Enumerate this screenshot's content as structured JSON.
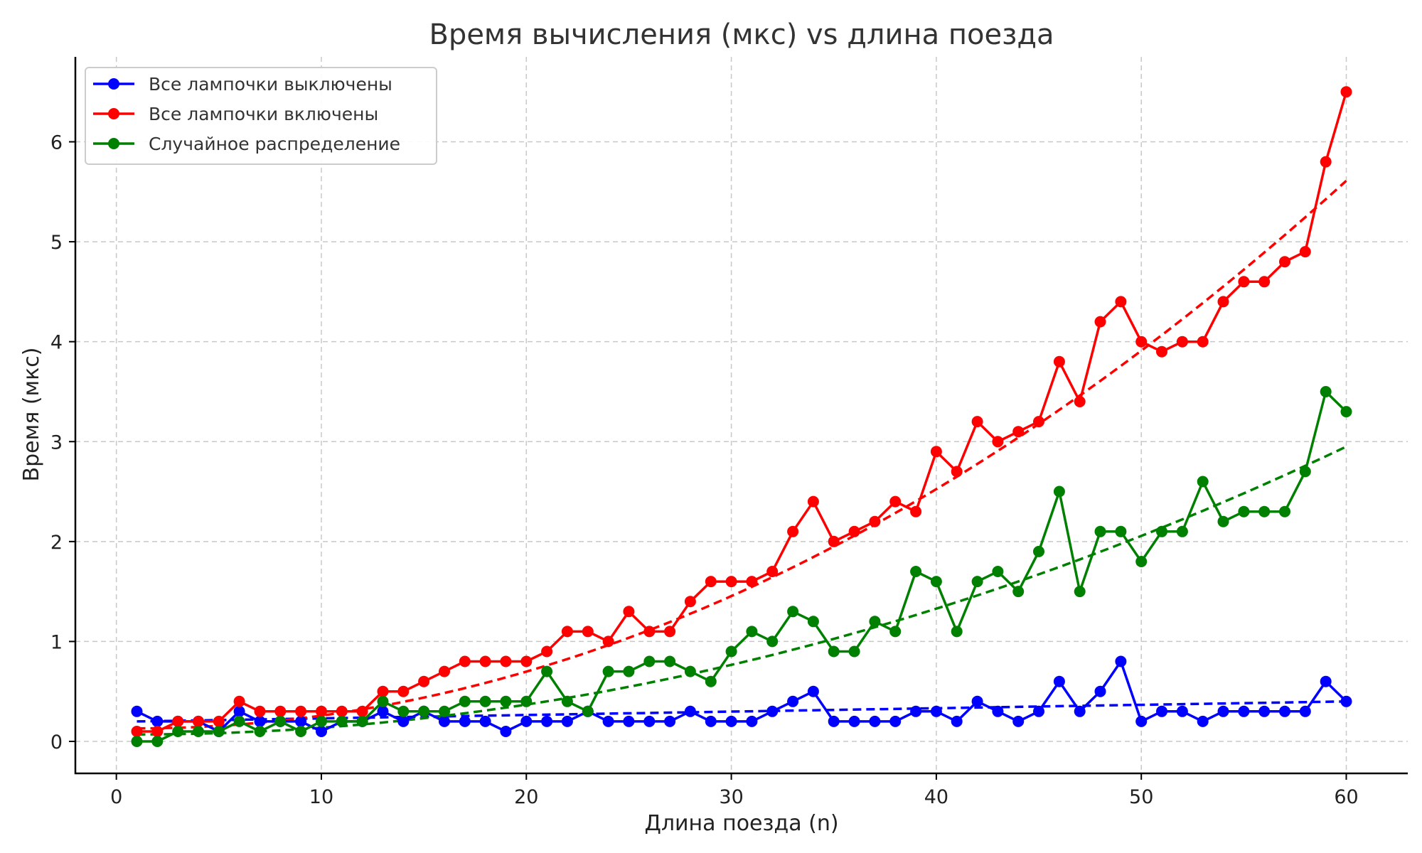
{
  "chart_data": {
    "type": "line",
    "title": "Время вычисления (мкс) vs длина поезда",
    "xlabel": "Длина поезда (n)",
    "ylabel": "Время (мкс)",
    "xlim": [
      -2,
      63
    ],
    "ylim": [
      -0.32,
      6.85
    ],
    "xticks": [
      0,
      10,
      20,
      30,
      40,
      50,
      60
    ],
    "yticks": [
      0,
      1,
      2,
      3,
      4,
      5,
      6
    ],
    "grid": true,
    "legend_position": "top-left",
    "x": [
      1,
      2,
      3,
      4,
      5,
      6,
      7,
      8,
      9,
      10,
      11,
      12,
      13,
      14,
      15,
      16,
      17,
      18,
      19,
      20,
      21,
      22,
      23,
      24,
      25,
      26,
      27,
      28,
      29,
      30,
      31,
      32,
      33,
      34,
      35,
      36,
      37,
      38,
      39,
      40,
      41,
      42,
      43,
      44,
      45,
      46,
      47,
      48,
      49,
      50,
      51,
      52,
      53,
      54,
      55,
      56,
      57,
      58,
      59,
      60
    ],
    "series": [
      {
        "name": "Все лампочки выключены",
        "color": "#0000ff",
        "values": [
          0.3,
          0.2,
          0.2,
          0.2,
          0.1,
          0.3,
          0.2,
          0.2,
          0.2,
          0.1,
          0.2,
          0.2,
          0.3,
          0.2,
          0.3,
          0.2,
          0.2,
          0.2,
          0.1,
          0.2,
          0.2,
          0.2,
          0.3,
          0.2,
          0.2,
          0.2,
          0.2,
          0.3,
          0.2,
          0.2,
          0.2,
          0.3,
          0.4,
          0.5,
          0.2,
          0.2,
          0.2,
          0.2,
          0.3,
          0.3,
          0.2,
          0.4,
          0.3,
          0.2,
          0.3,
          0.6,
          0.3,
          0.5,
          0.8,
          0.2,
          0.3,
          0.3,
          0.2,
          0.3,
          0.3,
          0.3,
          0.3,
          0.3,
          0.6,
          0.4
        ],
        "trend": [
          0.2,
          0.4
        ]
      },
      {
        "name": "Все лампочки включены",
        "color": "#ff0000",
        "values": [
          0.1,
          0.1,
          0.2,
          0.2,
          0.2,
          0.4,
          0.3,
          0.3,
          0.3,
          0.3,
          0.3,
          0.3,
          0.5,
          0.5,
          0.6,
          0.7,
          0.8,
          0.8,
          0.8,
          0.8,
          0.9,
          1.1,
          1.1,
          1.0,
          1.3,
          1.1,
          1.1,
          1.4,
          1.6,
          1.6,
          1.6,
          1.7,
          2.1,
          2.4,
          2.0,
          2.1,
          2.2,
          2.4,
          2.3,
          2.9,
          2.7,
          3.2,
          3.0,
          3.1,
          3.2,
          3.8,
          3.4,
          4.2,
          4.4,
          4.0,
          3.9,
          4.0,
          4.0,
          4.4,
          4.6,
          4.6,
          4.8,
          4.9,
          5.8,
          6.5
        ],
        "trend": [
          0.13,
          5.61
        ]
      },
      {
        "name": "Случайное распределение",
        "color": "#008000",
        "values": [
          0.0,
          0.0,
          0.1,
          0.1,
          0.1,
          0.2,
          0.1,
          0.2,
          0.1,
          0.2,
          0.2,
          0.2,
          0.4,
          0.3,
          0.3,
          0.3,
          0.4,
          0.4,
          0.4,
          0.4,
          0.7,
          0.4,
          0.3,
          0.7,
          0.7,
          0.8,
          0.8,
          0.7,
          0.6,
          0.9,
          1.1,
          1.0,
          1.3,
          1.2,
          0.9,
          0.9,
          1.2,
          1.1,
          1.7,
          1.6,
          1.1,
          1.6,
          1.7,
          1.5,
          1.9,
          2.5,
          1.5,
          2.1,
          2.1,
          1.8,
          2.1,
          2.1,
          2.6,
          2.2,
          2.3,
          2.3,
          2.3,
          2.7,
          3.5,
          3.3
        ],
        "trend": [
          0.07,
          2.95
        ]
      }
    ]
  }
}
